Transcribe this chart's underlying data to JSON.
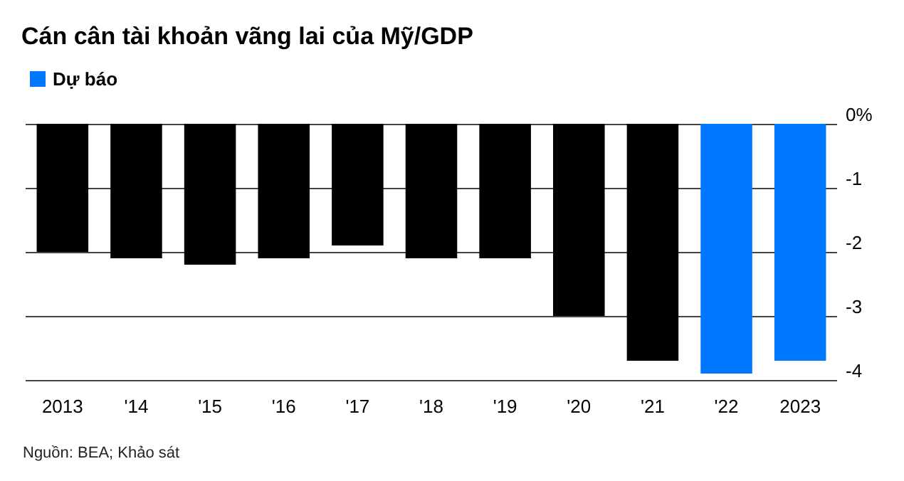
{
  "chart_data": {
    "type": "bar",
    "title": "Cán cân tài khoản vãng lai của Mỹ/GDP",
    "categories": [
      "2013",
      "'14",
      "'15",
      "'16",
      "'17",
      "'18",
      "'19",
      "'20",
      "'21",
      "'22",
      "2023"
    ],
    "series": [
      {
        "color": "#000000",
        "values": [
          -2.0,
          -2.1,
          -2.2,
          -2.1,
          -1.9,
          -2.1,
          -2.1,
          -3.0,
          -3.7,
          null,
          null
        ]
      },
      {
        "name": "Dự báo",
        "color": "#0077ff",
        "values": [
          null,
          null,
          null,
          null,
          null,
          null,
          null,
          null,
          null,
          -3.9,
          -3.7
        ]
      }
    ],
    "stacked": true,
    "ylim": [
      -4,
      0
    ],
    "yticks": [
      {
        "value": 0,
        "label": "0%"
      },
      -1,
      -2,
      -3,
      -4
    ],
    "grid": "y",
    "legend": "top left",
    "annotations": [
      "Nguồn: BEA; Khảo sát"
    ]
  }
}
